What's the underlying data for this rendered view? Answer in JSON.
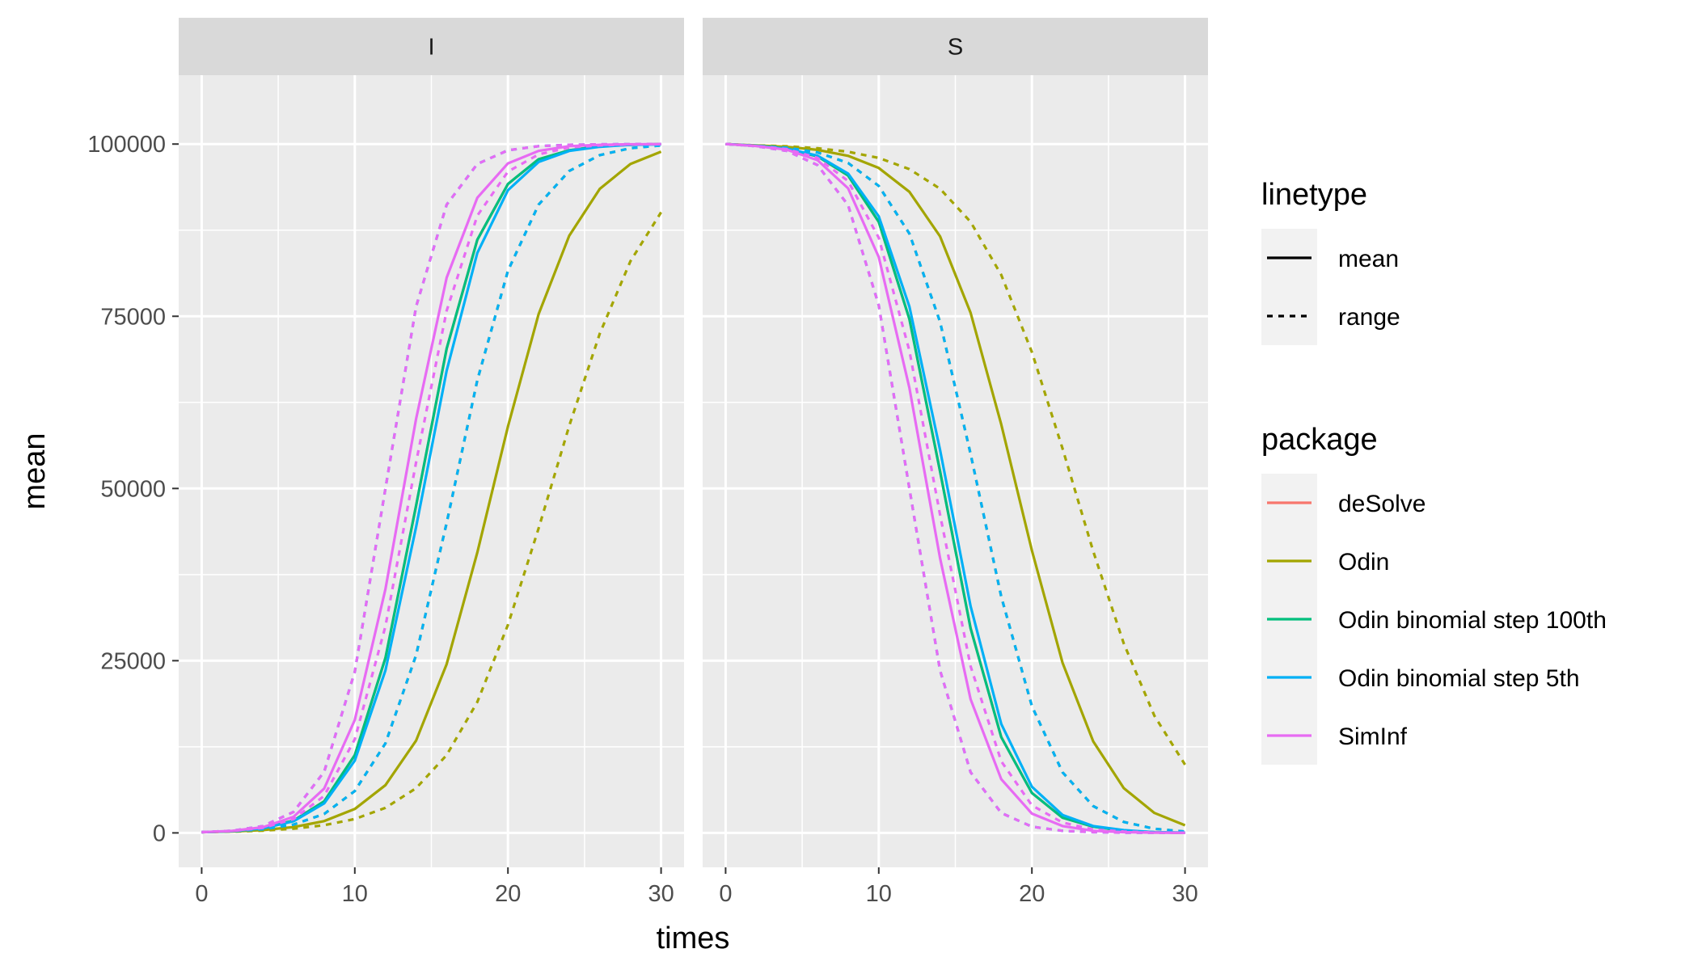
{
  "chart_data": {
    "type": "line",
    "xlabel": "times",
    "ylabel": "mean",
    "xlim": [
      -1.5,
      31.5
    ],
    "ylim": [
      -5000,
      110000
    ],
    "x_ticks": [
      0,
      10,
      20,
      30
    ],
    "y_ticks": [
      0,
      25000,
      50000,
      75000,
      100000
    ],
    "x_tick_labels": [
      "0",
      "10",
      "20",
      "30"
    ],
    "y_tick_labels": [
      "0",
      "25000",
      "50000",
      "75000",
      "100000"
    ],
    "grid": true,
    "legend_position": "right",
    "x": [
      0,
      2,
      4,
      6,
      8,
      10,
      12,
      14,
      16,
      18,
      20,
      22,
      24,
      26,
      28,
      30
    ],
    "panels": [
      {
        "name": "I",
        "series": [
          {
            "package": "deSolve",
            "linetype": "mean",
            "color": "#F8766D",
            "values": [
              100,
              260,
              680,
              1780,
              4570,
              11300,
              25400,
              47500,
              70300,
              86100,
              94200,
              97800,
              99100,
              99700,
              99900,
              100000
            ]
          },
          {
            "package": "Odin",
            "linetype": "mean",
            "color": "#A3A500",
            "values": [
              100,
              200,
              410,
              840,
              1710,
              3470,
              6930,
              13400,
              24500,
              40700,
              59000,
              75300,
              86700,
              93500,
              97100,
              98900
            ]
          },
          {
            "package": "Odin",
            "linetype": "range",
            "color": "#A3A500",
            "values": [
              100,
              230,
              530,
              1210,
              2740,
              6080,
              13000,
              25800,
              45000,
              65700,
              81600,
              91200,
              96100,
              98400,
              99400,
              99800
            ]
          },
          {
            "package": "Odin",
            "linetype": "range",
            "color": "#A3A500",
            "values": [
              100,
              180,
              330,
              610,
              1110,
              2020,
              3640,
              6490,
              11300,
              19000,
              30200,
              44200,
              59100,
              72500,
              83000,
              90100
            ]
          },
          {
            "package": "Odin binomial step 100th",
            "linetype": "mean",
            "color": "#00BF7D",
            "values": [
              100,
              260,
              680,
              1780,
              4570,
              11300,
              25400,
              47500,
              70300,
              86100,
              94200,
              97800,
              99100,
              99700,
              99900,
              100000
            ]
          },
          {
            "package": "Odin binomial step 5th",
            "linetype": "mean",
            "color": "#00B0F6",
            "values": [
              100,
              260,
              660,
              1690,
              4280,
              10500,
              23600,
              44400,
              67100,
              84200,
              93300,
              97400,
              99000,
              99600,
              99900,
              99950
            ]
          },
          {
            "package": "Odin binomial step 5th",
            "linetype": "range",
            "color": "#00B0F6",
            "values": [
              100,
              320,
              1000,
              3050,
              8870,
              23400,
              50000,
              76400,
              91200,
              97100,
              99100,
              99700,
              99900,
              99970,
              99990,
              100000
            ]
          },
          {
            "package": "Odin binomial step 5th",
            "linetype": "range",
            "color": "#00B0F6",
            "values": [
              100,
              230,
              530,
              1210,
              2740,
              6080,
              13000,
              25800,
              45000,
              65700,
              81600,
              91200,
              96100,
              98400,
              99400,
              99800
            ]
          },
          {
            "package": "SimInf",
            "linetype": "mean",
            "color": "#E76BF3",
            "values": [
              100,
              290,
              820,
              2330,
              6430,
              16400,
              35400,
              60100,
              80600,
              92200,
              97200,
              99000,
              99700,
              99900,
              99970,
              99990
            ]
          },
          {
            "package": "SimInf",
            "linetype": "range",
            "color": "#E76BF3",
            "values": [
              100,
              320,
              1000,
              3050,
              8870,
              23400,
              50000,
              76400,
              91200,
              97100,
              99100,
              99700,
              99900,
              99970,
              99990,
              100000
            ]
          },
          {
            "package": "SimInf",
            "linetype": "range",
            "color": "#E76BF3",
            "values": [
              100,
              270,
              740,
              2010,
              5370,
              13600,
              30000,
              53800,
              75800,
              89600,
              96000,
              98500,
              99500,
              99800,
              99940,
              99980
            ]
          }
        ]
      },
      {
        "name": "S",
        "series": [
          {
            "package": "deSolve",
            "linetype": "mean",
            "color": "#F8766D",
            "values": [
              100000,
              99740,
              99320,
              98220,
              95430,
              88700,
              74600,
              52500,
              29700,
              13900,
              5800,
              2200,
              900,
              300,
              100,
              0
            ]
          },
          {
            "package": "Odin",
            "linetype": "mean",
            "color": "#A3A500",
            "values": [
              100000,
              99800,
              99590,
              99160,
              98290,
              96530,
              93070,
              86600,
              75500,
              59300,
              41000,
              24700,
              13300,
              6500,
              2900,
              1100
            ]
          },
          {
            "package": "Odin",
            "linetype": "range",
            "color": "#A3A500",
            "values": [
              100000,
              99770,
              99470,
              98790,
              97260,
              93920,
              87000,
              74200,
              55000,
              34300,
              18400,
              8800,
              3900,
              1600,
              600,
              200
            ]
          },
          {
            "package": "Odin",
            "linetype": "range",
            "color": "#A3A500",
            "values": [
              100000,
              99820,
              99670,
              99390,
              98890,
              97980,
              96360,
              93510,
              88700,
              81000,
              69800,
              55800,
              40900,
              27500,
              17000,
              9900
            ]
          },
          {
            "package": "Odin binomial step 100th",
            "linetype": "mean",
            "color": "#00BF7D",
            "values": [
              100000,
              99740,
              99320,
              98220,
              95430,
              88700,
              74600,
              52500,
              29700,
              13900,
              5800,
              2200,
              900,
              300,
              100,
              0
            ]
          },
          {
            "package": "Odin binomial step 5th",
            "linetype": "mean",
            "color": "#00B0F6",
            "values": [
              100000,
              99740,
              99340,
              98310,
              95720,
              89500,
              76400,
              55600,
              32900,
              15800,
              6700,
              2600,
              1000,
              400,
              100,
              50
            ]
          },
          {
            "package": "Odin binomial step 5th",
            "linetype": "range",
            "color": "#00B0F6",
            "values": [
              100000,
              99680,
              99000,
              96950,
              91130,
              76600,
              50000,
              23600,
              8800,
              2900,
              900,
              300,
              100,
              30,
              10,
              0
            ]
          },
          {
            "package": "Odin binomial step 5th",
            "linetype": "range",
            "color": "#00B0F6",
            "values": [
              100000,
              99770,
              99470,
              98790,
              97260,
              93920,
              87000,
              74200,
              55000,
              34300,
              18400,
              8800,
              3900,
              1600,
              600,
              200
            ]
          },
          {
            "package": "SimInf",
            "linetype": "mean",
            "color": "#E76BF3",
            "values": [
              100000,
              99710,
              99180,
              97670,
              93570,
              83600,
              64600,
              39900,
              19400,
              7800,
              2800,
              1000,
              300,
              100,
              30,
              10
            ]
          },
          {
            "package": "SimInf",
            "linetype": "range",
            "color": "#E76BF3",
            "values": [
              100000,
              99680,
              99000,
              96950,
              91130,
              76600,
              50000,
              23600,
              8800,
              2900,
              900,
              300,
              100,
              30,
              10,
              0
            ]
          },
          {
            "package": "SimInf",
            "linetype": "range",
            "color": "#E76BF3",
            "values": [
              100000,
              99730,
              99260,
              97990,
              94630,
              86400,
              70000,
              46200,
              24200,
              10400,
              4000,
              1500,
              500,
              200,
              60,
              20
            ]
          }
        ]
      }
    ],
    "legend": {
      "linetype": {
        "title": "linetype",
        "items": [
          {
            "label": "mean",
            "dash": "solid"
          },
          {
            "label": "range",
            "dash": "dashed"
          }
        ]
      },
      "package": {
        "title": "package",
        "items": [
          {
            "label": "deSolve",
            "color": "#F8766D"
          },
          {
            "label": "Odin",
            "color": "#A3A500"
          },
          {
            "label": "Odin binomial step 100th",
            "color": "#00BF7D"
          },
          {
            "label": "Odin binomial step 5th",
            "color": "#00B0F6"
          },
          {
            "label": "SimInf",
            "color": "#E76BF3"
          }
        ]
      }
    }
  }
}
